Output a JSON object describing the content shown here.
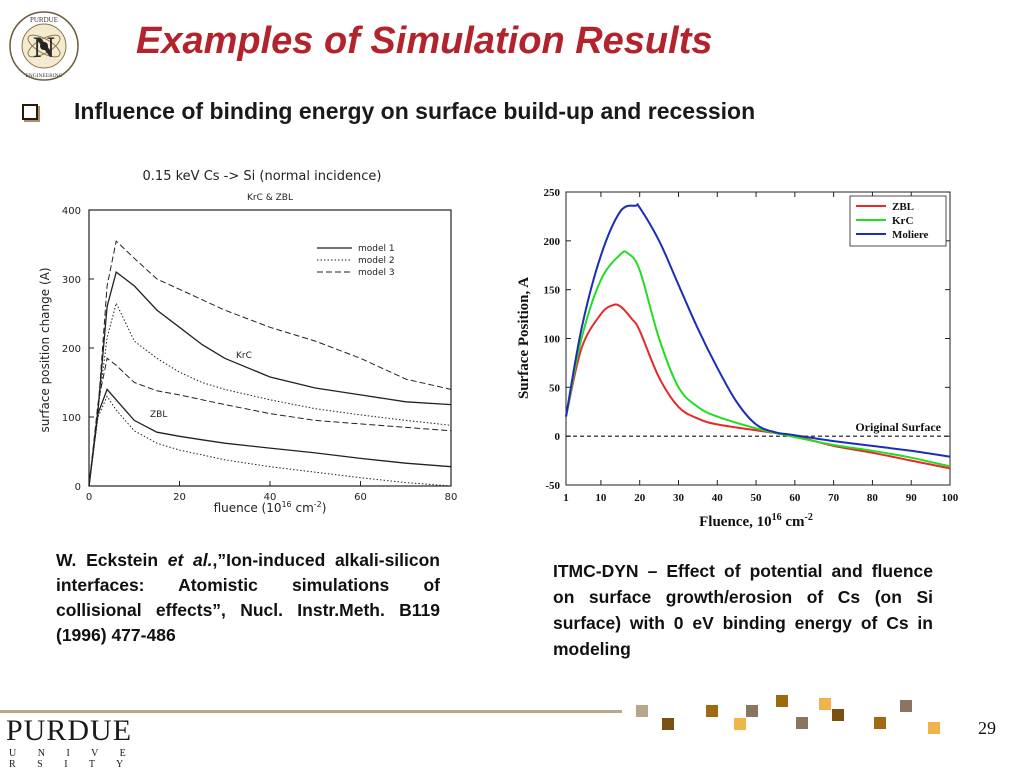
{
  "slide": {
    "title": "Examples of Simulation Results",
    "subtitle": "Influence of binding energy on surface build-up and recession",
    "page_number": "29",
    "logo_seal_text": "PURDUE NUCLEAR ENGINEERING",
    "logo_seal_letter": "N",
    "footer_logo": {
      "name": "PURDUE",
      "sub": "U N I V E R S I T Y"
    },
    "caption_left": {
      "author": "W. Eckstein ",
      "etal": "et al.",
      "rest": ",”Ion-induced alkali-silicon interfaces: Atomistic simulations of collisional effects”, Nucl. Instr.Meth. B119 (1996) 477-486"
    },
    "caption_right": "ITMC-DYN – Effect of potential and fluence on surface growth/erosion of Cs (on Si surface) with 0 eV binding energy of Cs in modeling",
    "colors": {
      "title": "#b3232b",
      "zbl": "#e8282a",
      "krc": "#22dd22",
      "moliere": "#1c2fb4"
    }
  },
  "chart_data": [
    {
      "type": "line",
      "title": "0.15 keV Cs -> Si (normal incidence)",
      "subtitle": "KrC & ZBL",
      "xlabel": "fluence (10^16 cm^-2)",
      "ylabel": "surface position change (A)",
      "xlim": [
        0,
        80
      ],
      "ylim": [
        0,
        400
      ],
      "xticks": [
        "0",
        "20",
        "40",
        "60",
        "80"
      ],
      "yticks": [
        "0",
        "100",
        "200",
        "300",
        "400"
      ],
      "legend": [
        "model 1",
        "model 2",
        "model 3"
      ],
      "annotations": [
        "KrC",
        "ZBL"
      ],
      "series": [
        {
          "name": "model 1",
          "group": "KrC",
          "x": [
            0,
            2,
            4,
            6,
            10,
            15,
            20,
            25,
            30,
            40,
            50,
            60,
            70,
            80
          ],
          "y": [
            0,
            110,
            260,
            310,
            290,
            255,
            230,
            205,
            185,
            158,
            142,
            132,
            122,
            118
          ]
        },
        {
          "name": "model 2",
          "group": "KrC",
          "x": [
            0,
            2,
            4,
            6,
            10,
            15,
            20,
            25,
            30,
            40,
            50,
            60,
            70,
            80
          ],
          "y": [
            0,
            110,
            215,
            265,
            210,
            185,
            165,
            150,
            140,
            125,
            112,
            103,
            95,
            88
          ]
        },
        {
          "name": "model 3",
          "group": "KrC",
          "x": [
            0,
            2,
            4,
            6,
            10,
            15,
            20,
            25,
            30,
            40,
            50,
            60,
            70,
            80
          ],
          "y": [
            0,
            110,
            290,
            355,
            330,
            300,
            285,
            270,
            255,
            230,
            210,
            185,
            155,
            140
          ]
        },
        {
          "name": "model 1",
          "group": "ZBL",
          "x": [
            0,
            2,
            4,
            6,
            10,
            15,
            20,
            25,
            30,
            40,
            50,
            60,
            70,
            80
          ],
          "y": [
            0,
            105,
            140,
            125,
            95,
            78,
            72,
            67,
            62,
            55,
            48,
            40,
            33,
            28
          ]
        },
        {
          "name": "model 2",
          "group": "ZBL",
          "x": [
            0,
            2,
            4,
            6,
            10,
            15,
            20,
            25,
            30,
            40,
            50,
            60,
            70,
            80
          ],
          "y": [
            0,
            100,
            130,
            110,
            80,
            62,
            52,
            45,
            38,
            28,
            20,
            12,
            5,
            0
          ]
        },
        {
          "name": "model 3",
          "group": "ZBL",
          "x": [
            0,
            2,
            4,
            6,
            10,
            15,
            20,
            25,
            30,
            40,
            50,
            60,
            70,
            80
          ],
          "y": [
            0,
            120,
            185,
            175,
            150,
            138,
            132,
            125,
            118,
            105,
            95,
            90,
            85,
            80
          ]
        }
      ]
    },
    {
      "type": "line",
      "xlabel": "Fluence, 10^16 cm^-2",
      "ylabel": "Surface Position, A",
      "xlim": [
        1,
        100
      ],
      "ylim": [
        -50,
        250
      ],
      "xticks": [
        1,
        10,
        20,
        30,
        40,
        50,
        60,
        70,
        80,
        90,
        100
      ],
      "yticks": [
        -50,
        0,
        50,
        100,
        150,
        200,
        250
      ],
      "legend_position": "top-right",
      "annotation": "Original Surface",
      "series": [
        {
          "name": "ZBL",
          "x": [
            1,
            5,
            10,
            13,
            15,
            18,
            20,
            25,
            30,
            35,
            40,
            50,
            60,
            70,
            80,
            90,
            100
          ],
          "y": [
            20,
            90,
            125,
            134,
            133,
            120,
            108,
            60,
            30,
            18,
            12,
            6,
            0,
            -10,
            -17,
            -25,
            -33
          ]
        },
        {
          "name": "KrC",
          "x": [
            1,
            5,
            10,
            15,
            17,
            20,
            25,
            30,
            35,
            40,
            50,
            60,
            70,
            80,
            90,
            100
          ],
          "y": [
            20,
            100,
            160,
            186,
            187,
            170,
            100,
            50,
            30,
            20,
            8,
            -1,
            -9,
            -15,
            -22,
            -31
          ]
        },
        {
          "name": "Moliere",
          "x": [
            1,
            5,
            10,
            15,
            19,
            20,
            25,
            30,
            35,
            40,
            45,
            50,
            55,
            60,
            70,
            80,
            90,
            100
          ],
          "y": [
            20,
            110,
            185,
            230,
            236,
            234,
            200,
            155,
            110,
            70,
            35,
            12,
            4,
            1,
            -5,
            -10,
            -15,
            -21
          ]
        }
      ]
    }
  ]
}
